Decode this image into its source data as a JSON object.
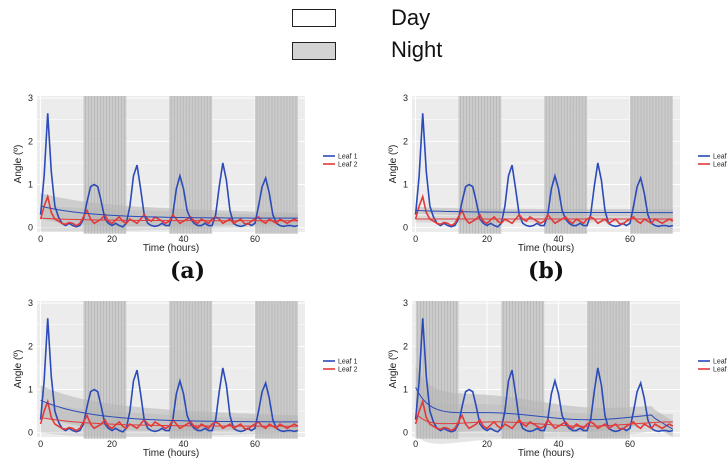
{
  "top_legend": {
    "day_label": "Day",
    "night_label": "Night",
    "day_color": "#ffffff",
    "night_color": "#d3d3d3"
  },
  "panel_labels": [
    "(a)",
    "(b)",
    "",
    ""
  ],
  "colors": {
    "panel_bg": "#ececec",
    "grid": "#ffffff",
    "night_shade": "#c8c8c8",
    "night_hatch": "#b0b0b0",
    "leaf1": "#2b4bb8",
    "leaf2": "#e23a3a",
    "band": "#b4b4b4"
  },
  "chart_data": [
    {
      "type": "line",
      "panel": "a",
      "xlabel": "Time (hours)",
      "ylabel": "Angle (º)",
      "xlim": [
        -1,
        74
      ],
      "ylim": [
        -0.1,
        3.05
      ],
      "xticks": [
        0,
        20,
        40,
        60
      ],
      "yticks": [
        0,
        1,
        2,
        3
      ],
      "night_intervals": [
        [
          12,
          24
        ],
        [
          36,
          48
        ],
        [
          60,
          72
        ]
      ],
      "legend": [
        "Leaf 1",
        "Leaf 2"
      ],
      "x": [
        0,
        1,
        2,
        3,
        4,
        5,
        6,
        7,
        8,
        9,
        10,
        11,
        12,
        13,
        14,
        15,
        16,
        17,
        18,
        19,
        20,
        21,
        22,
        23,
        24,
        25,
        26,
        27,
        28,
        29,
        30,
        31,
        32,
        33,
        34,
        35,
        36,
        37,
        38,
        39,
        40,
        41,
        42,
        43,
        44,
        45,
        46,
        47,
        48,
        49,
        50,
        51,
        52,
        53,
        54,
        55,
        56,
        57,
        58,
        59,
        60,
        61,
        62,
        63,
        64,
        65,
        66,
        67,
        68,
        69,
        70,
        71,
        72
      ],
      "series": [
        {
          "name": "Leaf 1",
          "values": [
            0.3,
            1.2,
            2.65,
            1.3,
            0.5,
            0.25,
            0.1,
            0.05,
            0.1,
            0.05,
            0.02,
            0.05,
            0.2,
            0.6,
            0.95,
            1.0,
            0.95,
            0.6,
            0.2,
            0.1,
            0.05,
            0.1,
            0.05,
            0.02,
            0.1,
            0.5,
            1.2,
            1.45,
            0.9,
            0.3,
            0.1,
            0.05,
            0.03,
            0.05,
            0.1,
            0.05,
            0.05,
            0.3,
            0.9,
            1.2,
            0.9,
            0.4,
            0.2,
            0.1,
            0.05,
            0.05,
            0.1,
            0.05,
            0.05,
            0.3,
            0.95,
            1.5,
            1.1,
            0.4,
            0.1,
            0.05,
            0.03,
            0.05,
            0.1,
            0.05,
            0.1,
            0.5,
            0.95,
            1.15,
            0.8,
            0.3,
            0.1,
            0.05,
            0.03,
            0.05,
            0.05,
            0.03,
            0.05
          ]
        },
        {
          "name": "Leaf 2",
          "values": [
            0.2,
            0.5,
            0.72,
            0.35,
            0.2,
            0.15,
            0.1,
            0.08,
            0.12,
            0.1,
            0.05,
            0.1,
            0.25,
            0.4,
            0.2,
            0.1,
            0.15,
            0.2,
            0.3,
            0.15,
            0.1,
            0.18,
            0.25,
            0.15,
            0.1,
            0.2,
            0.15,
            0.1,
            0.2,
            0.3,
            0.2,
            0.15,
            0.25,
            0.2,
            0.15,
            0.1,
            0.15,
            0.3,
            0.2,
            0.1,
            0.15,
            0.2,
            0.25,
            0.15,
            0.1,
            0.2,
            0.15,
            0.1,
            0.2,
            0.25,
            0.2,
            0.1,
            0.15,
            0.2,
            0.1,
            0.15,
            0.2,
            0.1,
            0.08,
            0.15,
            0.2,
            0.25,
            0.15,
            0.1,
            0.2,
            0.15,
            0.1,
            0.2,
            0.15,
            0.1,
            0.15,
            0.2,
            0.15
          ]
        }
      ],
      "fit": {
        "leaf1_start": 0.5,
        "leaf1_end": 0.22,
        "leaf2_start": 0.22,
        "leaf2_end": 0.16,
        "band_halfwidth_start": 0.3,
        "band_halfwidth_end": 0.12
      }
    },
    {
      "type": "line",
      "panel": "b",
      "xlabel": "Time (hours)",
      "ylabel": "Angle (º)",
      "xlim": [
        -1,
        74
      ],
      "ylim": [
        -0.1,
        3.05
      ],
      "xticks": [
        0,
        20,
        40,
        60
      ],
      "yticks": [
        0,
        1,
        2,
        3
      ],
      "night_intervals": [
        [
          12,
          24
        ],
        [
          36,
          48
        ],
        [
          60,
          72
        ]
      ],
      "legend": [
        "Leaf 1",
        "Leaf 2"
      ],
      "x": [
        0,
        1,
        2,
        3,
        4,
        5,
        6,
        7,
        8,
        9,
        10,
        11,
        12,
        13,
        14,
        15,
        16,
        17,
        18,
        19,
        20,
        21,
        22,
        23,
        24,
        25,
        26,
        27,
        28,
        29,
        30,
        31,
        32,
        33,
        34,
        35,
        36,
        37,
        38,
        39,
        40,
        41,
        42,
        43,
        44,
        45,
        46,
        47,
        48,
        49,
        50,
        51,
        52,
        53,
        54,
        55,
        56,
        57,
        58,
        59,
        60,
        61,
        62,
        63,
        64,
        65,
        66,
        67,
        68,
        69,
        70,
        71,
        72
      ],
      "series": [
        {
          "name": "Leaf 1",
          "values": [
            0.3,
            1.2,
            2.65,
            1.3,
            0.5,
            0.25,
            0.1,
            0.05,
            0.1,
            0.05,
            0.02,
            0.05,
            0.2,
            0.6,
            0.95,
            1.0,
            0.95,
            0.6,
            0.2,
            0.1,
            0.05,
            0.1,
            0.05,
            0.02,
            0.1,
            0.5,
            1.2,
            1.45,
            0.9,
            0.3,
            0.1,
            0.05,
            0.03,
            0.05,
            0.1,
            0.05,
            0.05,
            0.3,
            0.9,
            1.2,
            0.9,
            0.4,
            0.2,
            0.1,
            0.05,
            0.05,
            0.1,
            0.05,
            0.05,
            0.3,
            0.95,
            1.5,
            1.1,
            0.4,
            0.1,
            0.05,
            0.03,
            0.05,
            0.1,
            0.05,
            0.1,
            0.5,
            0.95,
            1.15,
            0.8,
            0.3,
            0.1,
            0.05,
            0.03,
            0.05,
            0.05,
            0.03,
            0.05
          ]
        },
        {
          "name": "Leaf 2",
          "values": [
            0.2,
            0.5,
            0.72,
            0.35,
            0.2,
            0.15,
            0.1,
            0.08,
            0.12,
            0.1,
            0.05,
            0.1,
            0.25,
            0.4,
            0.2,
            0.1,
            0.15,
            0.2,
            0.3,
            0.15,
            0.1,
            0.18,
            0.25,
            0.15,
            0.1,
            0.2,
            0.15,
            0.1,
            0.2,
            0.3,
            0.2,
            0.15,
            0.25,
            0.2,
            0.15,
            0.1,
            0.15,
            0.3,
            0.2,
            0.1,
            0.15,
            0.2,
            0.25,
            0.15,
            0.1,
            0.2,
            0.15,
            0.1,
            0.2,
            0.25,
            0.2,
            0.1,
            0.15,
            0.2,
            0.1,
            0.15,
            0.2,
            0.1,
            0.08,
            0.15,
            0.2,
            0.25,
            0.15,
            0.1,
            0.2,
            0.15,
            0.1,
            0.2,
            0.15,
            0.1,
            0.15,
            0.2,
            0.15
          ]
        }
      ],
      "fit": {
        "leaf1_start": 0.4,
        "leaf1_end": 0.35,
        "leaf2_start": 0.2,
        "leaf2_end": 0.2,
        "band_halfwidth_start": 0.08,
        "band_halfwidth_end": 0.08
      }
    },
    {
      "type": "line",
      "panel": "c",
      "xlabel": "Time (hours)",
      "ylabel": "Angle (º)",
      "xlim": [
        -1,
        74
      ],
      "ylim": [
        -0.1,
        3.05
      ],
      "xticks": [
        0,
        20,
        40,
        60
      ],
      "yticks": [
        0,
        1,
        2,
        3
      ],
      "night_intervals": [
        [
          12,
          24
        ],
        [
          36,
          48
        ],
        [
          60,
          72
        ]
      ],
      "legend": [
        "Leaf 1",
        "Leaf 2"
      ],
      "x": [
        0,
        1,
        2,
        3,
        4,
        5,
        6,
        7,
        8,
        9,
        10,
        11,
        12,
        13,
        14,
        15,
        16,
        17,
        18,
        19,
        20,
        21,
        22,
        23,
        24,
        25,
        26,
        27,
        28,
        29,
        30,
        31,
        32,
        33,
        34,
        35,
        36,
        37,
        38,
        39,
        40,
        41,
        42,
        43,
        44,
        45,
        46,
        47,
        48,
        49,
        50,
        51,
        52,
        53,
        54,
        55,
        56,
        57,
        58,
        59,
        60,
        61,
        62,
        63,
        64,
        65,
        66,
        67,
        68,
        69,
        70,
        71,
        72
      ],
      "series": [
        {
          "name": "Leaf 1",
          "values": [
            0.3,
            1.2,
            2.65,
            1.3,
            0.5,
            0.25,
            0.1,
            0.05,
            0.1,
            0.05,
            0.02,
            0.05,
            0.2,
            0.6,
            0.95,
            1.0,
            0.95,
            0.6,
            0.2,
            0.1,
            0.05,
            0.1,
            0.05,
            0.02,
            0.1,
            0.5,
            1.2,
            1.45,
            0.9,
            0.3,
            0.1,
            0.05,
            0.03,
            0.05,
            0.1,
            0.05,
            0.05,
            0.3,
            0.9,
            1.2,
            0.9,
            0.4,
            0.2,
            0.1,
            0.05,
            0.05,
            0.1,
            0.05,
            0.05,
            0.3,
            0.95,
            1.5,
            1.1,
            0.4,
            0.1,
            0.05,
            0.03,
            0.05,
            0.1,
            0.05,
            0.1,
            0.5,
            0.95,
            1.15,
            0.8,
            0.3,
            0.1,
            0.05,
            0.03,
            0.05,
            0.05,
            0.03,
            0.05
          ]
        },
        {
          "name": "Leaf 2",
          "values": [
            0.2,
            0.5,
            0.72,
            0.35,
            0.2,
            0.15,
            0.1,
            0.08,
            0.12,
            0.1,
            0.05,
            0.1,
            0.25,
            0.4,
            0.2,
            0.1,
            0.15,
            0.2,
            0.3,
            0.15,
            0.1,
            0.18,
            0.25,
            0.15,
            0.1,
            0.2,
            0.15,
            0.1,
            0.2,
            0.3,
            0.2,
            0.15,
            0.25,
            0.2,
            0.15,
            0.1,
            0.15,
            0.3,
            0.2,
            0.1,
            0.15,
            0.2,
            0.25,
            0.15,
            0.1,
            0.2,
            0.15,
            0.1,
            0.2,
            0.25,
            0.2,
            0.1,
            0.15,
            0.2,
            0.1,
            0.15,
            0.2,
            0.1,
            0.08,
            0.15,
            0.2,
            0.25,
            0.15,
            0.1,
            0.2,
            0.15,
            0.1,
            0.2,
            0.15,
            0.1,
            0.15,
            0.2,
            0.15
          ]
        }
      ],
      "fit": {
        "leaf1_start": 0.75,
        "leaf1_end": 0.25,
        "leaf2_start": 0.35,
        "leaf2_end": 0.15,
        "band_halfwidth_start": 0.35,
        "band_halfwidth_end": 0.15
      }
    },
    {
      "type": "line",
      "panel": "d",
      "xlabel": "Time (hours)",
      "ylabel": "Angle (º)",
      "xlim": [
        -1,
        74
      ],
      "ylim": [
        -0.1,
        3.05
      ],
      "xticks": [
        0,
        20,
        40,
        60
      ],
      "yticks": [
        0,
        1,
        2,
        3
      ],
      "night_intervals": [
        [
          0,
          12
        ],
        [
          24,
          36
        ],
        [
          48,
          60
        ]
      ],
      "legend": [
        "Leaf 1",
        "Leaf 2"
      ],
      "x": [
        0,
        1,
        2,
        3,
        4,
        5,
        6,
        7,
        8,
        9,
        10,
        11,
        12,
        13,
        14,
        15,
        16,
        17,
        18,
        19,
        20,
        21,
        22,
        23,
        24,
        25,
        26,
        27,
        28,
        29,
        30,
        31,
        32,
        33,
        34,
        35,
        36,
        37,
        38,
        39,
        40,
        41,
        42,
        43,
        44,
        45,
        46,
        47,
        48,
        49,
        50,
        51,
        52,
        53,
        54,
        55,
        56,
        57,
        58,
        59,
        60,
        61,
        62,
        63,
        64,
        65,
        66,
        67,
        68,
        69,
        70,
        71,
        72
      ],
      "series": [
        {
          "name": "Leaf 1",
          "values": [
            0.3,
            1.2,
            2.65,
            1.3,
            0.5,
            0.25,
            0.1,
            0.05,
            0.1,
            0.05,
            0.02,
            0.05,
            0.2,
            0.6,
            0.95,
            1.0,
            0.95,
            0.6,
            0.2,
            0.1,
            0.05,
            0.1,
            0.05,
            0.02,
            0.1,
            0.5,
            1.2,
            1.45,
            0.9,
            0.3,
            0.1,
            0.05,
            0.03,
            0.05,
            0.1,
            0.05,
            0.05,
            0.3,
            0.9,
            1.2,
            0.9,
            0.4,
            0.2,
            0.1,
            0.05,
            0.05,
            0.1,
            0.05,
            0.05,
            0.3,
            0.95,
            1.5,
            1.1,
            0.4,
            0.1,
            0.05,
            0.03,
            0.05,
            0.1,
            0.05,
            0.1,
            0.5,
            0.95,
            1.15,
            0.8,
            0.3,
            0.1,
            0.05,
            0.03,
            0.05,
            0.05,
            0.03,
            0.05
          ]
        },
        {
          "name": "Leaf 2",
          "values": [
            0.2,
            0.5,
            0.72,
            0.35,
            0.2,
            0.15,
            0.1,
            0.08,
            0.12,
            0.1,
            0.05,
            0.1,
            0.25,
            0.4,
            0.2,
            0.1,
            0.15,
            0.2,
            0.3,
            0.15,
            0.1,
            0.18,
            0.25,
            0.15,
            0.1,
            0.2,
            0.15,
            0.1,
            0.2,
            0.3,
            0.2,
            0.15,
            0.25,
            0.2,
            0.15,
            0.1,
            0.15,
            0.3,
            0.2,
            0.1,
            0.15,
            0.2,
            0.25,
            0.15,
            0.1,
            0.2,
            0.15,
            0.1,
            0.2,
            0.25,
            0.2,
            0.1,
            0.15,
            0.2,
            0.1,
            0.15,
            0.2,
            0.1,
            0.08,
            0.15,
            0.2,
            0.25,
            0.15,
            0.1,
            0.2,
            0.15,
            0.1,
            0.2,
            0.15,
            0.1,
            0.15,
            0.2,
            0.15
          ]
        }
      ],
      "fit": {
        "wavy": true,
        "leaf1_start": 1.1,
        "leaf1_mid": 0.38,
        "leaf2_start": 0.5,
        "leaf2_mid": 0.2,
        "band_halfwidth_start": 0.5,
        "band_halfwidth_end": 0.18
      }
    }
  ]
}
